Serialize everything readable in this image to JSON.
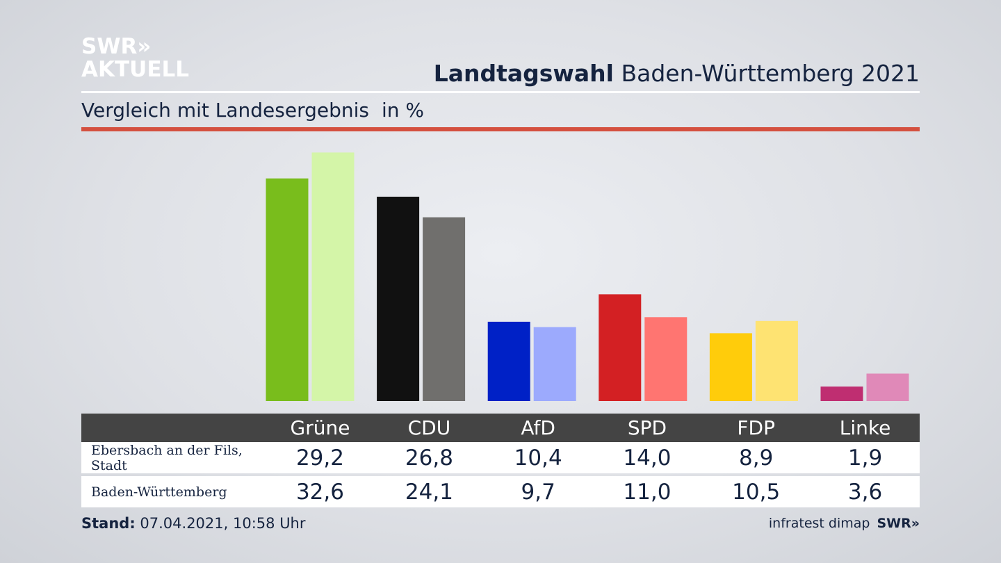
{
  "logo": {
    "line1": "SWR»",
    "line2": "AKTUELL"
  },
  "header": {
    "title_bold": "Landtagswahl",
    "title_rest": "Baden-Württemberg 2021"
  },
  "subtitle": {
    "text": "Vergleich mit Landesergebnis",
    "unit": "in %"
  },
  "footer": {
    "stand_label": "Stand:",
    "stand_value": "07.04.2021, 10:58 Uhr",
    "source": "infratest dimap",
    "source_brand": "SWR»"
  },
  "chart_data": {
    "type": "bar",
    "categories": [
      "Grüne",
      "CDU",
      "AfD",
      "SPD",
      "FDP",
      "Linke"
    ],
    "series": [
      {
        "name": "Ebersbach an der Fils, Stadt",
        "values": [
          29.2,
          26.8,
          10.4,
          14.0,
          8.9,
          1.9
        ],
        "labels": [
          "29,2",
          "26,8",
          "10,4",
          "14,0",
          "8,9",
          "1,9"
        ]
      },
      {
        "name": "Baden-Württemberg",
        "values": [
          32.6,
          24.1,
          9.7,
          11.0,
          10.5,
          3.6
        ],
        "labels": [
          "32,6",
          "24,1",
          "9,7",
          "11,0",
          "10,5",
          "3,6"
        ]
      }
    ],
    "colors": {
      "primary": [
        "#79bd1c",
        "#111111",
        "#0021c6",
        "#d32023",
        "#ffcc0b",
        "#bf2e71"
      ],
      "secondary": [
        "#d4f5a8",
        "#706f6d",
        "#9caafd",
        "#ff7571",
        "#fee372",
        "#e089b8"
      ]
    },
    "ylim": [
      0,
      33
    ]
  }
}
